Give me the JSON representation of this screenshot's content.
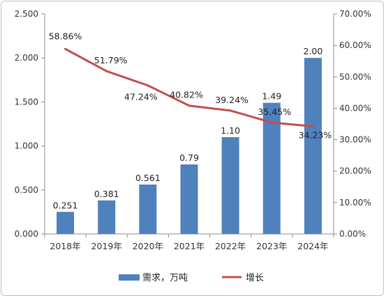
{
  "chart_data": {
    "type": "bar",
    "categories": [
      "2018年",
      "2019年",
      "2020年",
      "2021年",
      "2022年",
      "2023年",
      "2024年"
    ],
    "series": [
      {
        "name": "需求，万吨",
        "type": "bar",
        "axis": "left",
        "values": [
          0.251,
          0.381,
          0.561,
          0.79,
          1.1,
          1.49,
          2.0
        ],
        "labels": [
          "0.251",
          "0.381",
          "0.561",
          "0.79",
          "1.10",
          "1.49",
          "2.00"
        ],
        "color": "#4f81bd"
      },
      {
        "name": "增长",
        "type": "line",
        "axis": "right",
        "values": [
          58.86,
          51.79,
          47.24,
          40.82,
          39.24,
          35.45,
          34.23
        ],
        "labels": [
          "58.86%",
          "51.79%",
          "47.24%",
          "40.82%",
          "39.24%",
          "35.45%",
          "34.23%"
        ],
        "color": "#c0504d"
      }
    ],
    "y_left": {
      "ylim": [
        0,
        2.5
      ],
      "ticks": [
        0,
        0.5,
        1.0,
        1.5,
        2.0,
        2.5
      ],
      "tick_labels": [
        "0.000",
        "0.500",
        "1.000",
        "1.500",
        "2.000",
        "2.500"
      ]
    },
    "y_right": {
      "ylim": [
        0,
        70
      ],
      "ticks": [
        0,
        10,
        20,
        30,
        40,
        50,
        60,
        70
      ],
      "tick_labels": [
        "0.00%",
        "10.00%",
        "20.00%",
        "30.00%",
        "40.00%",
        "50.00%",
        "60.00%",
        "70.00%"
      ]
    },
    "grid": false,
    "legend_position": "bottom"
  }
}
